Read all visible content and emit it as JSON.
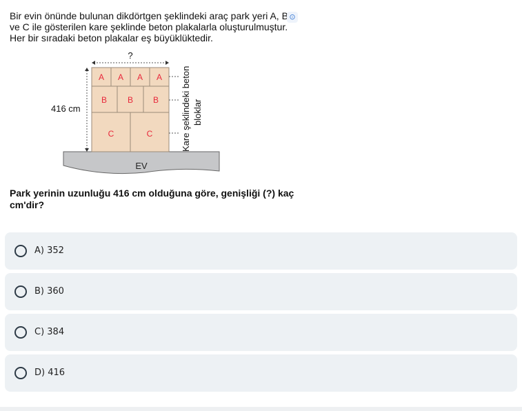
{
  "question": {
    "intro": "Bir evin önünde bulunan dikdörtgen şeklindeki araç park yeri A, B ve C ile gösterilen kare şeklinde beton plakalarla oluşturulmuştur. Her bir sıradaki beton plakalar eş büyüklüktedir.",
    "prompt": "Park yerinin uzunluğu 416 cm olduğuna göre, genişliği (?) kaç cm'dir?"
  },
  "figure": {
    "width_label": "?",
    "height_label": "416 cm",
    "row_a": [
      "A",
      "A",
      "A",
      "A"
    ],
    "row_b": [
      "B",
      "B",
      "B"
    ],
    "row_c": [
      "C",
      "C"
    ],
    "side_label_1": "Kare şeklindeki beton",
    "side_label_2": "bloklar",
    "house_label": "EV",
    "tile_color": "#f2d9bf",
    "letter_color": "#e8273a"
  },
  "options": [
    {
      "label": "A) 352"
    },
    {
      "label": "B) 360"
    },
    {
      "label": "C) 384"
    },
    {
      "label": "D) 416"
    }
  ]
}
